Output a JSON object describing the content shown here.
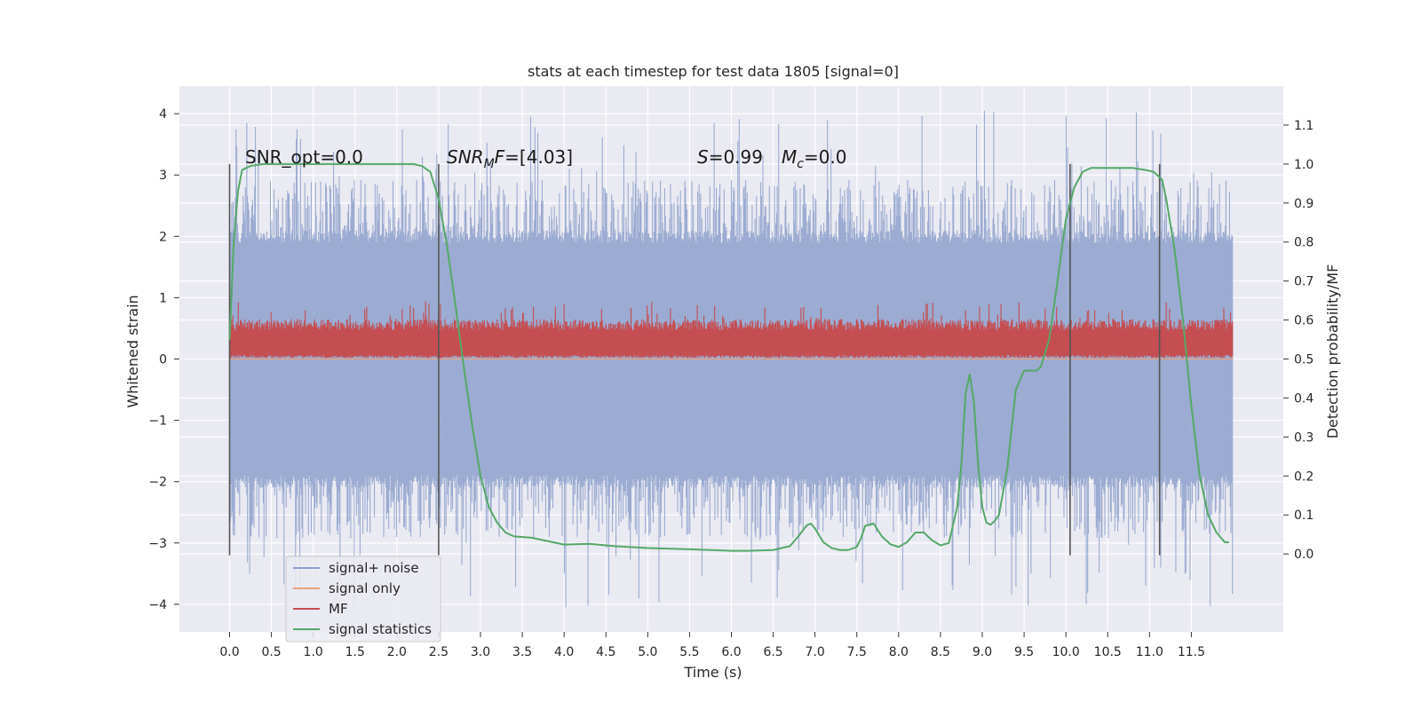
{
  "chart_data": {
    "type": "line",
    "title": "stats at each timestep for test data 1805 [signal=0]",
    "xlabel": "Time (s)",
    "ylabel_left": "Whitened strain",
    "ylabel_right": "Detection probability/MF",
    "xlim": [
      -0.6,
      12.6
    ],
    "ylim_left": [
      -4.45,
      4.45
    ],
    "ylim_right": [
      -0.2,
      1.2
    ],
    "x_ticks": [
      "0.0",
      "0.5",
      "1.0",
      "1.5",
      "2.0",
      "2.5",
      "3.0",
      "3.5",
      "4.0",
      "4.5",
      "5.0",
      "5.5",
      "6.0",
      "6.5",
      "7.0",
      "7.5",
      "8.0",
      "8.5",
      "9.0",
      "9.5",
      "10.0",
      "10.5",
      "11.0",
      "11.5"
    ],
    "y_left_ticks": [
      "4",
      "3",
      "2",
      "1",
      "0",
      "−1",
      "−2",
      "−3",
      "−4"
    ],
    "y_right_ticks": [
      "1.1",
      "1.0",
      "0.9",
      "0.8",
      "0.7",
      "0.6",
      "0.5",
      "0.4",
      "0.3",
      "0.2",
      "0.1",
      "0.0"
    ],
    "grid": true,
    "legend_position": "lower-left",
    "annotations": {
      "snr_opt": "SNR_opt=0.0",
      "snr_mf_a": "SNR",
      "snr_mf_sub": "M",
      "snr_mf_b": "F",
      "snr_mf_val": "=[4.03]",
      "s_sym": "S",
      "s_val": "=0.99",
      "mc_sym": "M",
      "mc_sub": "c",
      "mc_val": "=0.0"
    },
    "vertical_lines_x": [
      0.0,
      2.5,
      10.05,
      11.12
    ],
    "series": [
      {
        "name": "signal+ noise",
        "color": "#8da0cb",
        "envelope": {
          "x_start": 0.0,
          "x_end": 12.0,
          "typical_min": -2.0,
          "typical_max": 2.0,
          "peak_max": 4.05,
          "peak_min": -4.05
        }
      },
      {
        "name": "signal only",
        "color": "#e8a27a",
        "values_constant": 0.0
      },
      {
        "name": "MF",
        "color": "#c44e52",
        "envelope": {
          "typical_min": 0.05,
          "typical_max": 0.65,
          "peak_max": 0.95
        }
      },
      {
        "name": "signal statistics",
        "color": "#55a868",
        "x": [
          0.0,
          0.05,
          0.1,
          0.15,
          0.25,
          0.4,
          0.6,
          1.0,
          1.5,
          2.0,
          2.2,
          2.3,
          2.4,
          2.5,
          2.6,
          2.7,
          2.8,
          2.9,
          3.0,
          3.1,
          3.2,
          3.3,
          3.4,
          3.6,
          3.8,
          4.0,
          4.3,
          4.6,
          5.0,
          5.5,
          6.0,
          6.2,
          6.5,
          6.7,
          6.8,
          6.9,
          6.95,
          7.0,
          7.1,
          7.2,
          7.3,
          7.4,
          7.5,
          7.55,
          7.6,
          7.7,
          7.8,
          7.9,
          8.0,
          8.1,
          8.2,
          8.3,
          8.4,
          8.5,
          8.6,
          8.7,
          8.75,
          8.8,
          8.85,
          8.9,
          8.95,
          9.0,
          9.05,
          9.1,
          9.15,
          9.2,
          9.3,
          9.4,
          9.5,
          9.55,
          9.6,
          9.65,
          9.7,
          9.8,
          9.9,
          10.0,
          10.1,
          10.2,
          10.3,
          10.5,
          10.8,
          10.95,
          11.05,
          11.15,
          11.2,
          11.3,
          11.4,
          11.5,
          11.6,
          11.7,
          11.8,
          11.9,
          11.95
        ],
        "values": [
          0.55,
          0.8,
          0.93,
          0.985,
          0.995,
          1.0,
          1.0,
          1.0,
          1.0,
          1.0,
          1.0,
          0.995,
          0.98,
          0.91,
          0.79,
          0.64,
          0.48,
          0.33,
          0.2,
          0.12,
          0.08,
          0.055,
          0.045,
          0.042,
          0.033,
          0.024,
          0.026,
          0.02,
          0.015,
          0.012,
          0.008,
          0.008,
          0.01,
          0.02,
          0.045,
          0.073,
          0.078,
          0.065,
          0.03,
          0.015,
          0.01,
          0.01,
          0.018,
          0.04,
          0.072,
          0.078,
          0.045,
          0.025,
          0.018,
          0.03,
          0.055,
          0.055,
          0.035,
          0.022,
          0.028,
          0.12,
          0.23,
          0.41,
          0.46,
          0.39,
          0.23,
          0.12,
          0.08,
          0.075,
          0.085,
          0.1,
          0.22,
          0.42,
          0.47,
          0.47,
          0.47,
          0.47,
          0.48,
          0.55,
          0.7,
          0.86,
          0.94,
          0.98,
          0.99,
          0.99,
          0.99,
          0.985,
          0.98,
          0.96,
          0.91,
          0.78,
          0.6,
          0.38,
          0.2,
          0.1,
          0.055,
          0.03,
          0.03
        ]
      }
    ]
  }
}
